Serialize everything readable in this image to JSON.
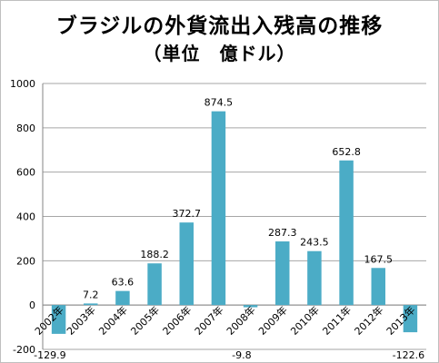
{
  "title": "ブラジルの外貨流出入残高の推移",
  "subtitle": "（単位　億ドル）",
  "colors": {
    "bar": "#4bacc6",
    "gridline": "#a6a6a6",
    "axis": "#868686",
    "text": "#000000"
  },
  "chart_data": {
    "type": "bar",
    "title": "ブラジルの外貨流出入残高の推移",
    "subtitle": "（単位　億ドル）",
    "categories": [
      "2002年",
      "2003年",
      "2004年",
      "2005年",
      "2006年",
      "2007年",
      "2008年",
      "2009年",
      "2010年",
      "2011年",
      "2012年",
      "2013年"
    ],
    "values": [
      -129.9,
      7.2,
      63.6,
      188.2,
      372.7,
      874.5,
      -9.8,
      287.3,
      243.5,
      652.8,
      167.5,
      -122.6
    ],
    "data_labels": [
      "-129.9",
      "7.2",
      "63.6",
      "188.2",
      "372.7",
      "874.5",
      "-9.8",
      "287.3",
      "243.5",
      "652.8",
      "167.5",
      "-122.6"
    ],
    "y_ticks": [
      -200,
      0,
      200,
      400,
      600,
      800,
      1000
    ],
    "ylim": [
      -200,
      1000
    ],
    "grid": true,
    "legend": "none"
  }
}
